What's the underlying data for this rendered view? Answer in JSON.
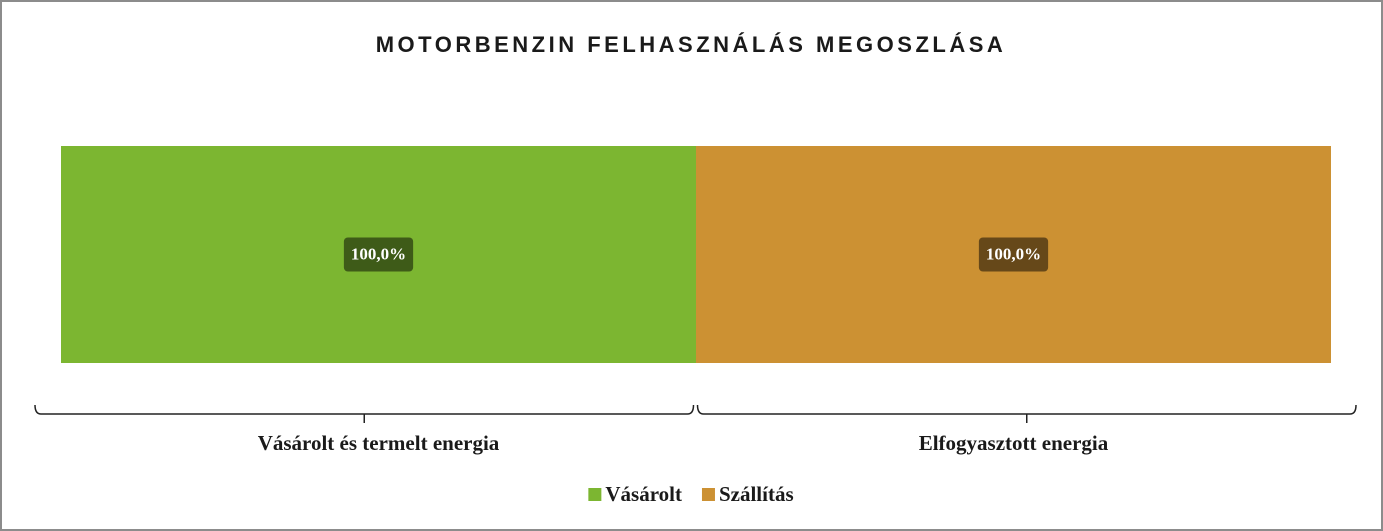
{
  "chart_data": {
    "type": "bar",
    "title": "MOTORBENZIN FELHASZNÁLÁS MEGOSZLÁSA",
    "categories": [
      "Vásárolt és termelt energia",
      "Elfogyasztott energia"
    ],
    "series": [
      {
        "name": "Vásárolt",
        "color": "#7cb631",
        "values": [
          100,
          null
        ],
        "value_labels": [
          "100,0%",
          null
        ]
      },
      {
        "name": "Szállítás",
        "color": "#cc9133",
        "values": [
          null,
          100
        ],
        "value_labels": [
          null,
          "100,0%"
        ]
      }
    ],
    "ylim": [
      0,
      100
    ]
  }
}
